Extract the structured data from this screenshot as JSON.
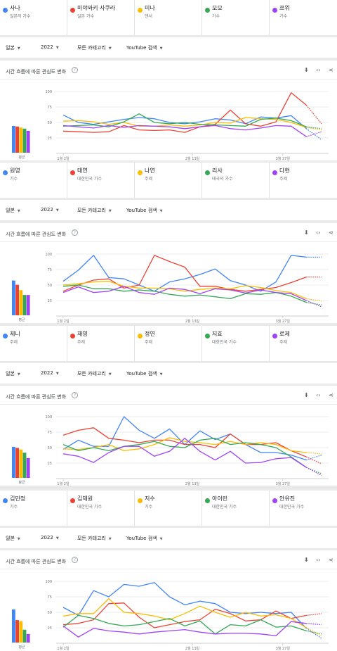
{
  "sections": [
    {
      "legend": [
        {
          "name": "사나",
          "sub": "일본의 가수",
          "color": "#4285f4"
        },
        {
          "name": "미야와키 사쿠라",
          "sub": "일본 가수",
          "color": "#ea4335"
        },
        {
          "name": "미나",
          "sub": "댄서",
          "color": "#fbbc04"
        },
        {
          "name": "모모",
          "sub": "가수",
          "color": "#34a853"
        },
        {
          "name": "쯔위",
          "sub": "가수",
          "color": "#a142f4"
        }
      ],
      "filters": {
        "region": "일본",
        "year": "2022",
        "category": "모든 카테고리",
        "source": "YouTube 검색"
      },
      "title": "시간 흐름에 따른 관심도 변화",
      "help": "?",
      "avg_label": "평균",
      "chart_data": {
        "type": "line",
        "ylim": [
          0,
          100
        ],
        "yticks": [
          "100",
          "75",
          "50",
          "25"
        ],
        "xticks": [
          "1월 2일",
          "2월 13일",
          "3월 27일"
        ],
        "averages": [
          50,
          49,
          47,
          45,
          41
        ],
        "series": [
          {
            "color": "#4285f4",
            "values": [
              62,
              50,
              47,
              51,
              55,
              58,
              56,
              50,
              48,
              51,
              56,
              54,
              48,
              59,
              57,
              61,
              40,
              22
            ]
          },
          {
            "color": "#ea4335",
            "values": [
              36,
              35,
              34,
              35,
              45,
              38,
              37,
              38,
              34,
              43,
              47,
              70,
              48,
              44,
              51,
              98,
              78,
              48
            ]
          },
          {
            "color": "#fbbc04",
            "values": [
              52,
              53,
              51,
              47,
              50,
              44,
              44,
              46,
              44,
              46,
              50,
              49,
              58,
              56,
              55,
              50,
              42,
              38
            ]
          },
          {
            "color": "#34a853",
            "values": [
              44,
              45,
              46,
              43,
              51,
              64,
              50,
              48,
              50,
              47,
              46,
              45,
              44,
              55,
              57,
              53,
              43,
              40
            ]
          },
          {
            "color": "#a142f4",
            "values": [
              45,
              43,
              41,
              45,
              42,
              45,
              44,
              43,
              40,
              43,
              45,
              40,
              38,
              41,
              45,
              44,
              27,
              35
            ]
          }
        ]
      }
    },
    {
      "legend": [
        {
          "name": "원영",
          "sub": "가수",
          "color": "#4285f4"
        },
        {
          "name": "태연",
          "sub": "대한민국 가수",
          "color": "#ea4335"
        },
        {
          "name": "나연",
          "sub": "주제",
          "color": "#fbbc04"
        },
        {
          "name": "리사",
          "sub": "태국의 가수",
          "color": "#34a853"
        },
        {
          "name": "다현",
          "sub": "주제",
          "color": "#a142f4"
        }
      ],
      "filters": {
        "region": "일본",
        "year": "2022",
        "category": "모든 카테고리",
        "source": "YouTube 검색"
      },
      "title": "시간 흐름에 따른 관심도 변화",
      "help": "?",
      "avg_label": "평균",
      "chart_data": {
        "type": "line",
        "ylim": [
          0,
          100
        ],
        "yticks": [
          "100",
          "75",
          "50",
          "25"
        ],
        "xticks": [
          "1월 2일",
          "2월 13일",
          "3월 27일"
        ],
        "averages": [
          65,
          57,
          47,
          38,
          38
        ],
        "series": [
          {
            "color": "#4285f4",
            "values": [
              56,
              74,
              98,
              62,
              60,
              50,
              40,
              55,
              60,
              67,
              76,
              57,
              50,
              40,
              55,
              98,
              95,
              95
            ]
          },
          {
            "color": "#ea4335",
            "values": [
              40,
              50,
              58,
              60,
              45,
              50,
              98,
              88,
              79,
              48,
              48,
              43,
              40,
              43,
              46,
              54,
              63,
              63
            ]
          },
          {
            "color": "#fbbc04",
            "values": [
              50,
              52,
              55,
              56,
              48,
              45,
              45,
              44,
              40,
              43,
              45,
              44,
              49,
              46,
              41,
              38,
              28,
              24
            ]
          },
          {
            "color": "#34a853",
            "values": [
              48,
              50,
              44,
              44,
              40,
              42,
              40,
              35,
              32,
              34,
              31,
              28,
              36,
              35,
              38,
              32,
              22,
              18
            ]
          },
          {
            "color": "#a142f4",
            "values": [
              38,
              47,
              38,
              40,
              48,
              38,
              35,
              45,
              43,
              36,
              44,
              42,
              37,
              42,
              38,
              36,
              25,
              15
            ]
          }
        ]
      }
    },
    {
      "legend": [
        {
          "name": "제니",
          "sub": "주제",
          "color": "#4285f4"
        },
        {
          "name": "채영",
          "sub": "주제",
          "color": "#ea4335"
        },
        {
          "name": "정연",
          "sub": "주제",
          "color": "#fbbc04"
        },
        {
          "name": "지효",
          "sub": "대한민국 가수",
          "color": "#34a853"
        },
        {
          "name": "로제",
          "sub": "주제",
          "color": "#a142f4"
        }
      ],
      "filters": {
        "region": "일본",
        "year": "2022",
        "category": "모든 카테고리",
        "source": "YouTube 검색"
      },
      "title": "시간 흐름에 따른 관심도 변화",
      "help": "?",
      "avg_label": "평균",
      "chart_data": {
        "type": "line",
        "ylim": [
          0,
          100
        ],
        "yticks": [
          "100",
          "75",
          "50",
          "25"
        ],
        "xticks": [
          "1월 2일",
          "2월 13일",
          "3월 27일"
        ],
        "averages": [
          58,
          56,
          53,
          47,
          37
        ],
        "series": [
          {
            "color": "#4285f4",
            "values": [
              47,
              62,
              52,
              52,
              100,
              78,
              65,
              80,
              55,
              77,
              63,
              72,
              55,
              42,
              42,
              38,
              30,
              38
            ]
          },
          {
            "color": "#ea4335",
            "values": [
              70,
              78,
              82,
              65,
              62,
              58,
              62,
              62,
              55,
              55,
              50,
              72,
              55,
              55,
              58,
              45,
              35,
              24
            ]
          },
          {
            "color": "#fbbc04",
            "values": [
              48,
              47,
              50,
              55,
              45,
              48,
              55,
              66,
              60,
              58,
              55,
              60,
              55,
              58,
              55,
              45,
              42,
              40
            ]
          },
          {
            "color": "#34a853",
            "values": [
              55,
              45,
              50,
              45,
              52,
              55,
              60,
              52,
              50,
              62,
              65,
              55,
              58,
              55,
              50,
              35,
              18,
              8
            ]
          },
          {
            "color": "#a142f4",
            "values": [
              40,
              36,
              26,
              42,
              52,
              52,
              36,
              44,
              65,
              44,
              30,
              44,
              25,
              26,
              32,
              34,
              18,
              5
            ]
          }
        ]
      }
    },
    {
      "legend": [
        {
          "name": "김민정",
          "sub": "가수",
          "color": "#4285f4"
        },
        {
          "name": "김채원",
          "sub": "대한민국 가수",
          "color": "#ea4335"
        },
        {
          "name": "지수",
          "sub": "가수",
          "color": "#fbbc04"
        },
        {
          "name": "아이린",
          "sub": "대한민국 가수",
          "color": "#34a853"
        },
        {
          "name": "안유진",
          "sub": "대한민국 가수",
          "color": "#a142f4"
        }
      ],
      "filters": {
        "region": "일본",
        "year": "2022",
        "category": "모든 카테고리",
        "source": "YouTube 검색"
      },
      "title": "시간 흐름에 따른 관심도 변화",
      "help": "?",
      "avg_label": "평균",
      "chart_data": {
        "type": "line",
        "ylim": [
          0,
          100
        ],
        "yticks": [
          "100",
          "75",
          "50",
          "25"
        ],
        "xticks": [
          "1월 2일",
          "2월 13일",
          "3월 27일"
        ],
        "averages": [
          62,
          42,
          40,
          24,
          16
        ],
        "series": [
          {
            "color": "#4285f4",
            "values": [
              58,
              45,
              85,
              75,
              95,
              92,
              98,
              75,
              62,
              68,
              64,
              50,
              48,
              50,
              48,
              50,
              24,
              8
            ]
          },
          {
            "color": "#ea4335",
            "values": [
              30,
              32,
              38,
              64,
              65,
              42,
              25,
              30,
              35,
              38,
              55,
              48,
              36,
              38,
              52,
              40,
              45,
              48
            ]
          },
          {
            "color": "#fbbc04",
            "values": [
              44,
              48,
              48,
              72,
              50,
              48,
              44,
              38,
              48,
              60,
              50,
              42,
              50,
              44,
              46,
              40,
              25,
              12
            ]
          },
          {
            "color": "#34a853",
            "values": [
              26,
              45,
              40,
              32,
              28,
              30,
              35,
              40,
              28,
              36,
              15,
              30,
              28,
              38,
              26,
              28,
              20,
              15
            ]
          },
          {
            "color": "#a142f4",
            "values": [
              28,
              10,
              24,
              20,
              18,
              15,
              18,
              20,
              22,
              18,
              15,
              16,
              16,
              15,
              12,
              35,
              32,
              30
            ]
          }
        ]
      }
    }
  ]
}
